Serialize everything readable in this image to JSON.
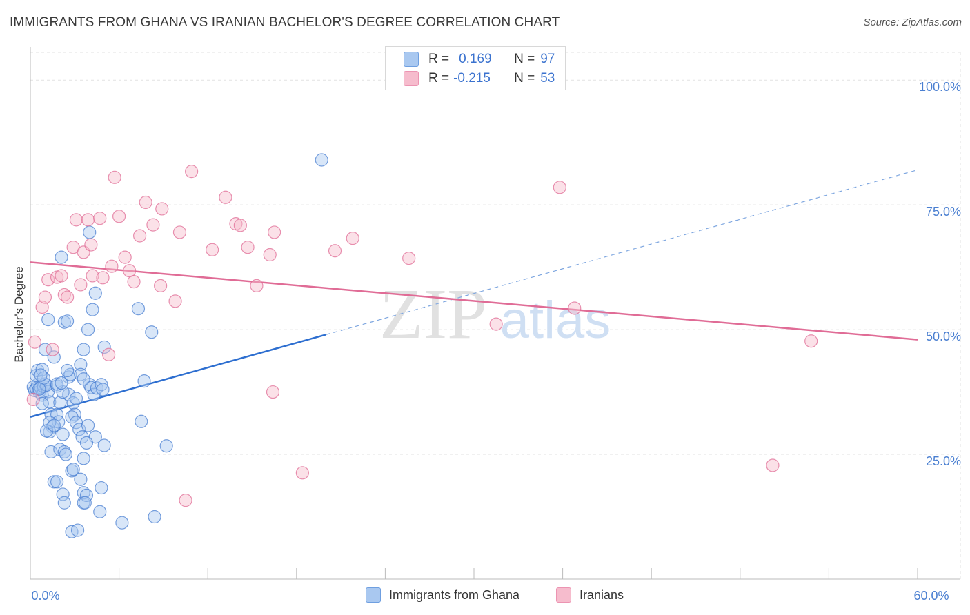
{
  "title": "IMMIGRANTS FROM GHANA VS IRANIAN BACHELOR'S DEGREE CORRELATION CHART",
  "source": "Source: ZipAtlas.com",
  "watermark": {
    "zip": "ZIP",
    "atlas": "atlas"
  },
  "legend": {
    "rows": [
      {
        "r_label": "R =",
        "r_value": "0.169",
        "n_label": "N =",
        "n_value": "97",
        "color": "#a9c8f0"
      },
      {
        "r_label": "R =",
        "r_value": "-0.215",
        "n_label": "N =",
        "n_value": "53",
        "color": "#f6bccd"
      }
    ]
  },
  "chart_data": {
    "type": "scatter",
    "title": "IMMIGRANTS FROM GHANA VS IRANIAN BACHELOR'S DEGREE CORRELATION CHART",
    "xlabel": "",
    "ylabel": "Bachelor's Degree",
    "xlim": [
      0,
      60
    ],
    "ylim": [
      0,
      105
    ],
    "x_tick_labels": [
      {
        "value": 0,
        "label": "0.0%"
      },
      {
        "value": 60,
        "label": "60.0%"
      }
    ],
    "y_tick_labels": [
      {
        "value": 100,
        "label": "100.0%"
      },
      {
        "value": 75,
        "label": "75.0%"
      },
      {
        "value": 50,
        "label": "50.0%"
      },
      {
        "value": 25,
        "label": "25.0%"
      }
    ],
    "grid": true,
    "legend_position": "top-center",
    "series": [
      {
        "name": "Immigrants from Ghana",
        "color": "#4a7fd1",
        "fill": "#a9c8f0",
        "trend": {
          "x0": 0,
          "y0": 32.5,
          "x1": 20,
          "y1": 49,
          "dashed_to_x": 60,
          "dashed_to_y": 82
        },
        "points": [
          [
            0.2,
            38.5
          ],
          [
            0.3,
            37.8
          ],
          [
            0.4,
            38.2
          ],
          [
            0.5,
            39
          ],
          [
            0.4,
            40.8
          ],
          [
            0.6,
            37.5
          ],
          [
            0.7,
            38.4
          ],
          [
            0.8,
            36.9
          ],
          [
            0.9,
            38.6
          ],
          [
            1.0,
            39.1
          ],
          [
            0.5,
            41.8
          ],
          [
            0.8,
            42
          ],
          [
            1.2,
            37.6
          ],
          [
            1.1,
            38.9
          ],
          [
            1.3,
            35.5
          ],
          [
            1.0,
            46
          ],
          [
            1.2,
            52
          ],
          [
            1.6,
            44.5
          ],
          [
            1.8,
            38.7
          ],
          [
            2.1,
            64.5
          ],
          [
            2.3,
            51.5
          ],
          [
            2.5,
            51.7
          ],
          [
            2.6,
            40.5
          ],
          [
            2.7,
            41
          ],
          [
            2.6,
            37
          ],
          [
            2.9,
            35.3
          ],
          [
            3.0,
            33
          ],
          [
            2.8,
            32.5
          ],
          [
            3.1,
            31.4
          ],
          [
            3.3,
            30
          ],
          [
            3.5,
            28.5
          ],
          [
            3.4,
            43
          ],
          [
            3.4,
            41
          ],
          [
            3.6,
            46
          ],
          [
            3.9,
            50
          ],
          [
            4.0,
            39
          ],
          [
            4.1,
            38.4
          ],
          [
            4.3,
            37
          ],
          [
            4.2,
            54
          ],
          [
            4.4,
            57.3
          ],
          [
            4.0,
            69.5
          ],
          [
            4.4,
            28.5
          ],
          [
            4.5,
            38.3
          ],
          [
            4.8,
            39
          ],
          [
            5.0,
            46.5
          ],
          [
            4.9,
            38
          ],
          [
            5.0,
            26.8
          ],
          [
            1.4,
            33
          ],
          [
            1.5,
            30.5
          ],
          [
            1.3,
            29.5
          ],
          [
            1.4,
            25.5
          ],
          [
            1.8,
            33
          ],
          [
            1.9,
            31.5
          ],
          [
            2.2,
            29
          ],
          [
            2.0,
            26
          ],
          [
            2.3,
            25.5
          ],
          [
            2.4,
            25
          ],
          [
            1.6,
            19.5
          ],
          [
            1.8,
            19.5
          ],
          [
            2.2,
            17
          ],
          [
            2.3,
            15.3
          ],
          [
            2.8,
            21.7
          ],
          [
            2.8,
            9.5
          ],
          [
            3.2,
            9.8
          ],
          [
            3.6,
            15.3
          ],
          [
            3.4,
            20
          ],
          [
            3.6,
            24.2
          ],
          [
            3.6,
            17.3
          ],
          [
            3.8,
            16.8
          ],
          [
            3.7,
            15.3
          ],
          [
            4.7,
            13.5
          ],
          [
            4.8,
            18.3
          ],
          [
            6.2,
            11.3
          ],
          [
            8.4,
            12.5
          ],
          [
            3.8,
            27.3
          ],
          [
            3.9,
            30.8
          ],
          [
            2.0,
            35.4
          ],
          [
            0.8,
            35.2
          ],
          [
            1.3,
            31.4
          ],
          [
            1.1,
            29.7
          ],
          [
            7.3,
            54.2
          ],
          [
            8.2,
            49.5
          ],
          [
            7.5,
            31.6
          ],
          [
            7.7,
            39.7
          ],
          [
            9.2,
            26.7
          ],
          [
            19.7,
            84
          ],
          [
            2.2,
            37.5
          ],
          [
            1.8,
            39.1
          ],
          [
            0.9,
            40.3
          ],
          [
            0.6,
            38.1
          ],
          [
            3.1,
            36.2
          ],
          [
            2.5,
            41.8
          ],
          [
            1.6,
            30.8
          ],
          [
            0.7,
            40.9
          ],
          [
            2.1,
            39.3
          ],
          [
            2.9,
            22
          ],
          [
            3.6,
            40.1
          ]
        ]
      },
      {
        "name": "Iranians",
        "color": "#e06c96",
        "fill": "#f6bccd",
        "trend": {
          "x0": 0,
          "y0": 63.5,
          "x1": 60,
          "y1": 48
        },
        "points": [
          [
            0.2,
            36
          ],
          [
            0.3,
            47.5
          ],
          [
            0.8,
            54.5
          ],
          [
            1.0,
            56.5
          ],
          [
            1.2,
            60
          ],
          [
            1.5,
            46
          ],
          [
            1.8,
            60.5
          ],
          [
            2.1,
            60.8
          ],
          [
            2.3,
            57
          ],
          [
            2.5,
            56.5
          ],
          [
            2.9,
            66.5
          ],
          [
            3.1,
            72
          ],
          [
            3.4,
            59
          ],
          [
            3.6,
            65.5
          ],
          [
            3.9,
            72
          ],
          [
            4.1,
            67
          ],
          [
            4.2,
            60.8
          ],
          [
            4.7,
            72.3
          ],
          [
            4.9,
            60.4
          ],
          [
            5.3,
            45
          ],
          [
            5.5,
            62.7
          ],
          [
            5.7,
            80.5
          ],
          [
            6.0,
            72.7
          ],
          [
            6.4,
            64.5
          ],
          [
            6.7,
            61.8
          ],
          [
            7.0,
            59.6
          ],
          [
            7.4,
            68.8
          ],
          [
            7.8,
            75.5
          ],
          [
            8.3,
            71
          ],
          [
            8.8,
            58.8
          ],
          [
            8.9,
            74.2
          ],
          [
            9.8,
            55.7
          ],
          [
            10.1,
            69.5
          ],
          [
            10.5,
            15.8
          ],
          [
            10.9,
            81.7
          ],
          [
            12.3,
            66
          ],
          [
            13.2,
            76.5
          ],
          [
            13.9,
            71.2
          ],
          [
            14.2,
            70.9
          ],
          [
            14.7,
            66.5
          ],
          [
            15.3,
            58.8
          ],
          [
            16.2,
            65
          ],
          [
            16.4,
            37.5
          ],
          [
            16.5,
            69.5
          ],
          [
            18.4,
            21.3
          ],
          [
            20.6,
            65.8
          ],
          [
            21.8,
            68.3
          ],
          [
            25.6,
            64.3
          ],
          [
            31.5,
            51.1
          ],
          [
            35.8,
            78.5
          ],
          [
            36.8,
            54.3
          ],
          [
            50.2,
            22.8
          ],
          [
            52.8,
            47.7
          ]
        ]
      }
    ]
  },
  "bottom_legend": [
    {
      "label": "Immigrants from Ghana",
      "color": "#a9c8f0",
      "border": "#6f9fe0"
    },
    {
      "label": "Iranians",
      "color": "#f6bccd",
      "border": "#ec94b2"
    }
  ]
}
